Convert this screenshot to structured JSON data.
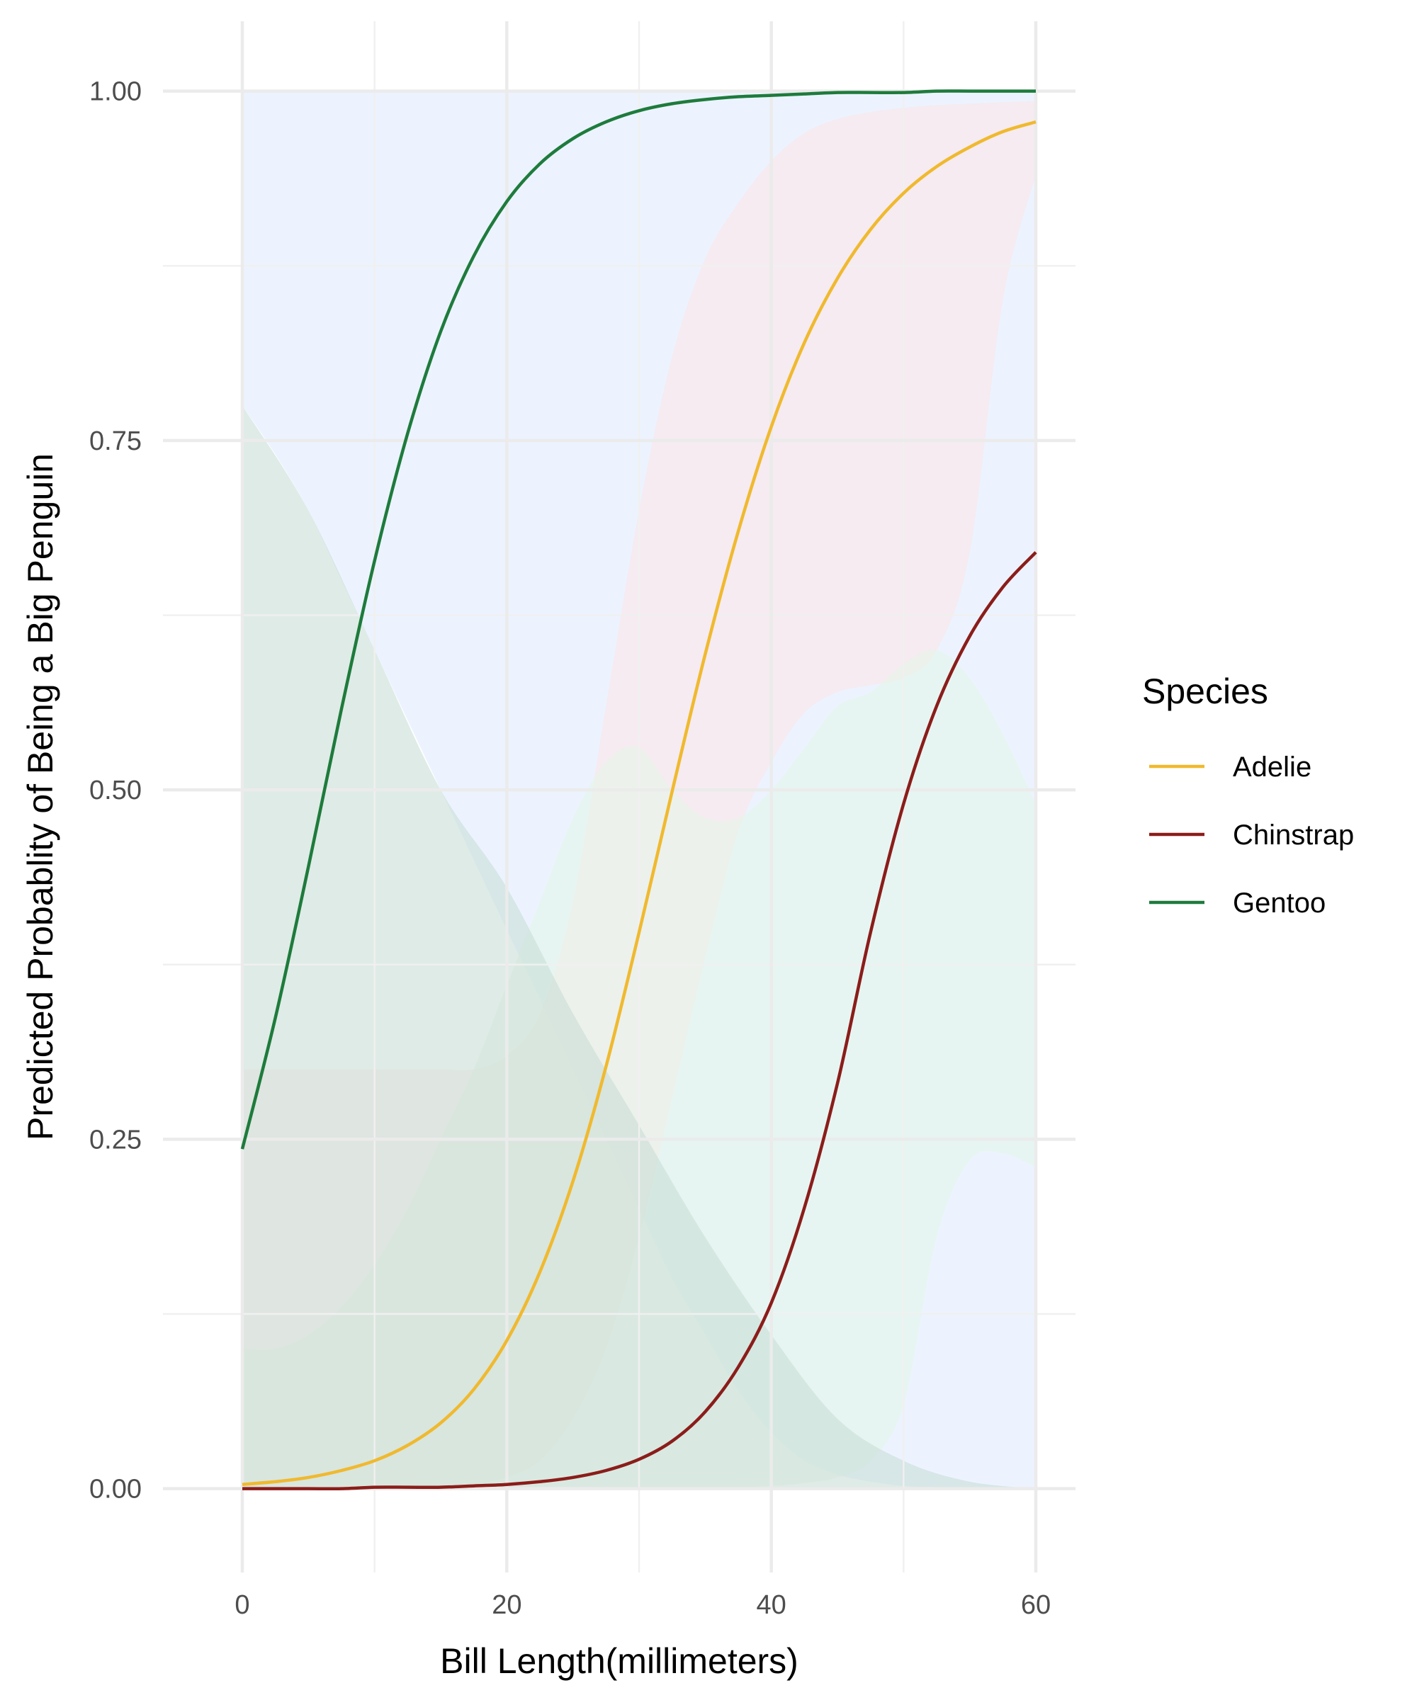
{
  "chart_data": {
    "type": "line",
    "title": "",
    "xlabel": "Bill Length(millimeters)",
    "ylabel": "Predicted Probablity of Being a Big Penguin",
    "xlim": [
      -6,
      63
    ],
    "ylim": [
      -0.06,
      1.05
    ],
    "x_ticks": [
      0,
      20,
      40,
      60
    ],
    "x_tick_labels": [
      "0",
      "20",
      "40",
      "60"
    ],
    "x_minor_ticks": [
      10,
      30,
      50
    ],
    "y_ticks": [
      0,
      0.25,
      0.5,
      0.75,
      1.0
    ],
    "y_tick_labels": [
      "0.00",
      "0.25",
      "0.50",
      "0.75",
      "1.00"
    ],
    "y_minor_ticks": [
      0.125,
      0.375,
      0.625,
      0.875
    ],
    "grid": true,
    "legend": {
      "title": "Species",
      "placement": "right",
      "entries": [
        "Adelie",
        "Chinstrap",
        "Gentoo"
      ]
    },
    "x": [
      0,
      2.5,
      5,
      7.5,
      10,
      12.5,
      15,
      17.5,
      20,
      22.5,
      25,
      27.5,
      30,
      32.5,
      35,
      37.5,
      40,
      42.5,
      45,
      47.5,
      50,
      52.5,
      55,
      57.5,
      60
    ],
    "series": [
      {
        "name": "Adelie",
        "color": "#f0b92e",
        "band_color": "#fde3e3",
        "values": [
          0.003,
          0.005,
          0.008,
          0.013,
          0.02,
          0.031,
          0.047,
          0.071,
          0.106,
          0.155,
          0.22,
          0.302,
          0.398,
          0.499,
          0.597,
          0.685,
          0.76,
          0.82,
          0.866,
          0.901,
          0.927,
          0.946,
          0.96,
          0.971,
          0.978
        ],
        "lower": [
          0.0,
          0.0,
          0.0,
          0.0,
          0.0,
          0.0,
          0.001,
          0.003,
          0.008,
          0.02,
          0.05,
          0.1,
          0.18,
          0.28,
          0.38,
          0.47,
          0.52,
          0.555,
          0.57,
          0.575,
          0.58,
          0.6,
          0.67,
          0.85,
          0.94
        ],
        "upper": [
          0.3,
          0.3,
          0.3,
          0.3,
          0.3,
          0.3,
          0.3,
          0.3,
          0.31,
          0.34,
          0.42,
          0.56,
          0.7,
          0.81,
          0.88,
          0.92,
          0.95,
          0.97,
          0.98,
          0.985,
          0.988,
          0.99,
          0.991,
          0.992,
          0.993
        ]
      },
      {
        "name": "Chinstrap",
        "color": "#8b1d1a",
        "band_color": "#e3f5e8",
        "values": [
          0.0,
          0.0,
          0.0,
          0.0,
          0.001,
          0.001,
          0.001,
          0.002,
          0.003,
          0.005,
          0.008,
          0.013,
          0.021,
          0.034,
          0.055,
          0.087,
          0.133,
          0.201,
          0.29,
          0.398,
          0.49,
          0.56,
          0.61,
          0.645,
          0.67
        ],
        "lower": [
          0,
          0,
          0,
          0,
          0,
          0,
          0,
          0,
          0,
          0,
          0,
          0,
          0,
          0,
          0,
          0.001,
          0.002,
          0.004,
          0.008,
          0.02,
          0.06,
          0.18,
          0.235,
          0.24,
          0.23
        ],
        "upper": [
          0.1,
          0.1,
          0.11,
          0.13,
          0.16,
          0.2,
          0.25,
          0.3,
          0.36,
          0.42,
          0.48,
          0.52,
          0.53,
          0.5,
          0.48,
          0.48,
          0.5,
          0.53,
          0.56,
          0.57,
          0.59,
          0.6,
          0.58,
          0.54,
          0.49
        ]
      },
      {
        "name": "Gentoo",
        "color": "#1e7b3c",
        "band_color": "#dde9fd",
        "values": [
          0.243,
          0.337,
          0.445,
          0.558,
          0.664,
          0.755,
          0.828,
          0.882,
          0.921,
          0.948,
          0.966,
          0.978,
          0.986,
          0.991,
          0.994,
          0.996,
          0.997,
          0.998,
          0.999,
          0.999,
          0.999,
          1.0,
          1.0,
          1.0,
          1.0
        ],
        "lower": [
          0.775,
          0.74,
          0.7,
          0.65,
          0.6,
          0.55,
          0.5,
          0.45,
          0.4,
          0.35,
          0.3,
          0.25,
          0.2,
          0.15,
          0.11,
          0.07,
          0.04,
          0.02,
          0.01,
          0.005,
          0.002,
          0.001,
          0.0,
          0.0,
          0.0
        ],
        "upper": [
          1.0,
          1.0,
          1.0,
          1.0,
          1.0,
          1.0,
          1.0,
          1.0,
          1.0,
          1.0,
          1.0,
          1.0,
          1.0,
          1.0,
          1.0,
          1.0,
          1.0,
          1.0,
          1.0,
          1.0,
          1.0,
          1.0,
          1.0,
          1.0,
          1.0
        ]
      }
    ],
    "band_overlays": [
      {
        "name": "Gentoo-lower-region",
        "color": "#c9ddd5",
        "x": [
          0,
          5,
          10,
          15,
          20,
          25,
          30,
          35,
          40,
          45,
          50,
          55,
          60
        ],
        "lower": [
          0.0,
          0.0,
          0.0,
          0.0,
          0.0,
          0.0,
          0.0,
          0.0,
          0.0,
          0.0,
          0.0,
          0.0,
          0.0
        ],
        "upper": [
          0.775,
          0.7,
          0.6,
          0.5,
          0.43,
          0.34,
          0.26,
          0.18,
          0.11,
          0.05,
          0.02,
          0.005,
          0.0
        ]
      }
    ]
  }
}
